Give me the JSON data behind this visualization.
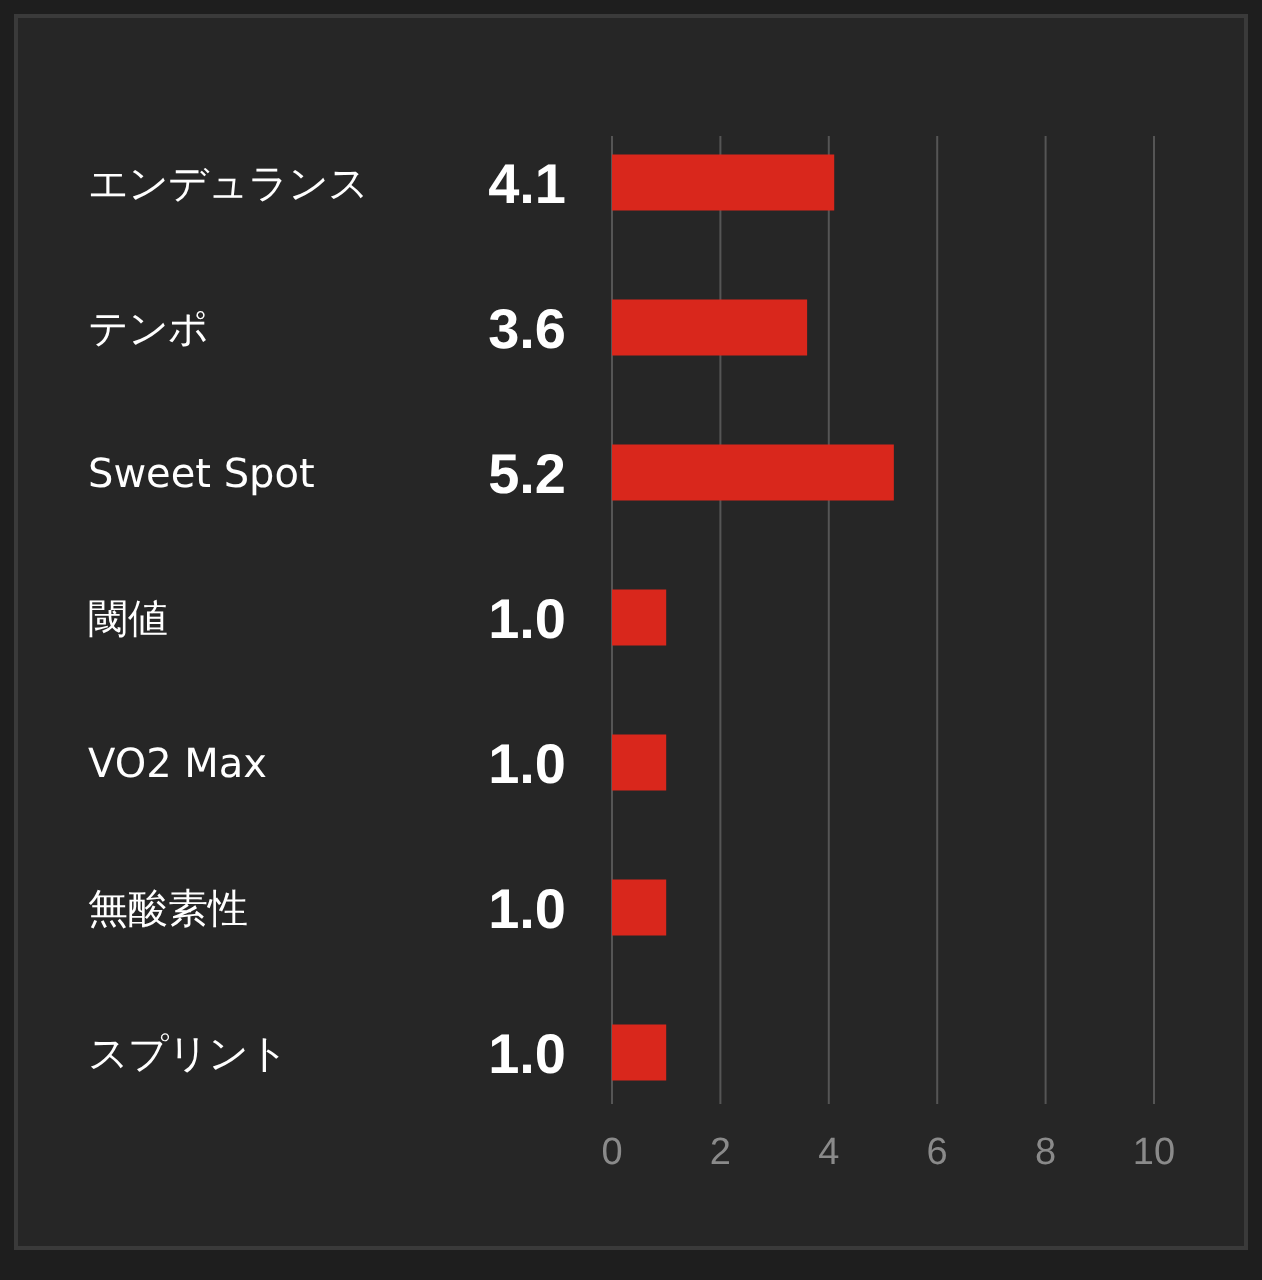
{
  "chart_data": {
    "type": "bar",
    "orientation": "horizontal",
    "categories": [
      "エンデュランス",
      "テンポ",
      "Sweet Spot",
      "閾値",
      "VO2 Max",
      "無酸素性",
      "スプリント"
    ],
    "values": [
      4.1,
      3.6,
      5.2,
      1.0,
      1.0,
      1.0,
      1.0
    ],
    "color": "#d9271c",
    "xlim": [
      0,
      10
    ],
    "xticks": [
      0,
      2,
      4,
      6,
      8,
      10
    ],
    "grid": "x",
    "value_labels": [
      "4.1",
      "3.6",
      "5.2",
      "1.0",
      "1.0",
      "1.0",
      "1.0"
    ]
  }
}
